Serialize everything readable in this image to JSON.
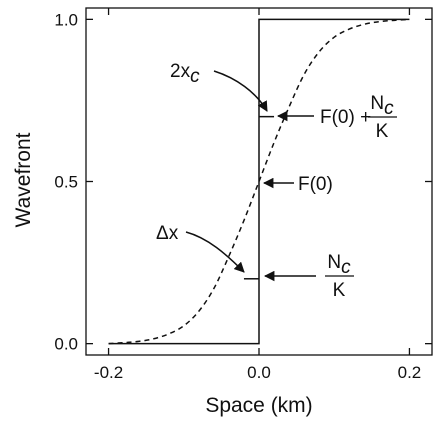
{
  "chart_data": {
    "type": "line",
    "xlabel": "Space (km)",
    "ylabel": "Wavefront",
    "xlim": [
      -0.23,
      0.23
    ],
    "ylim": [
      -0.035,
      1.035
    ],
    "x_ticks": [
      -0.2,
      0.0,
      0.2
    ],
    "x_tick_labels": [
      "-0.2",
      "0.0",
      "0.2"
    ],
    "y_ticks": [
      0.0,
      0.5,
      1.0
    ],
    "y_tick_labels": [
      "0.0",
      "0.5",
      "1.0"
    ],
    "grid": false,
    "series": [
      {
        "style": "dashed",
        "x": [
          -0.2,
          -0.18,
          -0.16,
          -0.14,
          -0.12,
          -0.1,
          -0.08,
          -0.06,
          -0.04,
          -0.02,
          0.0,
          0.02,
          0.04,
          0.06,
          0.08,
          0.1,
          0.12,
          0.14,
          0.16,
          0.18,
          0.2
        ],
        "y": [
          0.0,
          0.003,
          0.007,
          0.015,
          0.03,
          0.055,
          0.1,
          0.17,
          0.27,
          0.38,
          0.5,
          0.62,
          0.73,
          0.83,
          0.9,
          0.945,
          0.97,
          0.985,
          0.993,
          0.997,
          1.0
        ]
      },
      {
        "style": "solid",
        "x": [
          -0.2,
          0.0,
          0.0,
          0.0,
          0.0,
          0.2
        ],
        "y": [
          0.0,
          0.0,
          0.2,
          0.7,
          1.0,
          1.0
        ]
      }
    ],
    "markers": [
      {
        "x_from": -0.02,
        "x_to": 0.0,
        "y": 0.2
      },
      {
        "x_from": 0.0,
        "x_to": 0.02,
        "y": 0.7
      }
    ],
    "annotations": [
      {
        "label": "2x",
        "sub": "c",
        "points_to": [
          0.015,
          0.7
        ]
      },
      {
        "label": "Δx",
        "points_to": [
          -0.015,
          0.2
        ]
      },
      {
        "label": "F(0)",
        "points_to": [
          0.0,
          0.5
        ]
      },
      {
        "label": "F(0) +",
        "fraction_numerator": "N",
        "numerator_sub": "c",
        "fraction_denominator": "K",
        "points_to": [
          0.02,
          0.7
        ]
      },
      {
        "fraction_numerator": "N",
        "numerator_sub": "c",
        "fraction_denominator": "K",
        "points_to": [
          0.0,
          0.2
        ]
      }
    ]
  }
}
